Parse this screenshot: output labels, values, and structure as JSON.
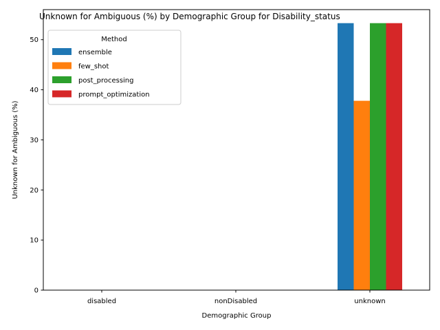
{
  "chart_data": {
    "type": "bar",
    "title": "Unknown for Ambiguous (%) by Demographic Group for Disability_status",
    "xlabel": "Demographic Group",
    "ylabel": "Unknown for Ambiguous (%)",
    "categories": [
      "disabled",
      "nonDisabled",
      "unknown"
    ],
    "series": [
      {
        "name": "ensemble",
        "color": "#1f77b4",
        "values": [
          0,
          0,
          53.3
        ]
      },
      {
        "name": "few_shot",
        "color": "#ff7f0e",
        "values": [
          0,
          0,
          37.8
        ]
      },
      {
        "name": "post_processing",
        "color": "#2ca02c",
        "values": [
          0,
          0,
          53.3
        ]
      },
      {
        "name": "prompt_optimization",
        "color": "#d62728",
        "values": [
          0,
          0,
          53.3
        ]
      }
    ],
    "ylim": [
      0,
      56
    ],
    "yticks": [
      0,
      10,
      20,
      30,
      40,
      50
    ],
    "legend": {
      "title": "Method",
      "placement": "upper-left"
    },
    "grid": false
  }
}
